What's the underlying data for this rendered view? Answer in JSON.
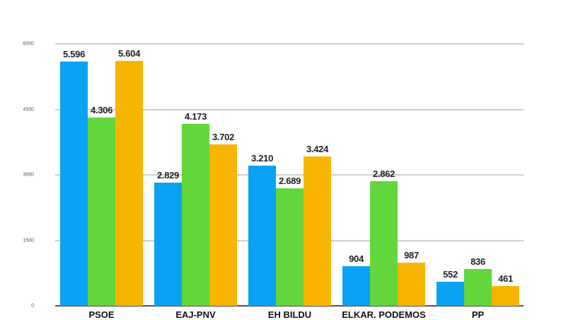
{
  "chart_data": {
    "type": "bar",
    "title": "",
    "xlabel": "",
    "ylabel": "",
    "ylim": [
      0,
      6000
    ],
    "yticks": [
      "0",
      "1500",
      "3000",
      "4500",
      "6000"
    ],
    "grid": true,
    "legend": null,
    "categories": [
      "PSOE",
      "EAJ-PNV",
      "EH BILDU",
      "ELKAR. PODEMOS",
      "PP"
    ],
    "series": [
      {
        "name": "series-1",
        "color": "#0aa2f5",
        "values": [
          5596,
          2829,
          3210,
          904,
          552
        ],
        "labels": [
          "5.596",
          "2.829",
          "3.210",
          "904",
          "552"
        ]
      },
      {
        "name": "series-2",
        "color": "#62d63b",
        "values": [
          4306,
          4173,
          2689,
          2862,
          836
        ],
        "labels": [
          "4.306",
          "4.173",
          "2.689",
          "2.862",
          "836"
        ]
      },
      {
        "name": "series-3",
        "color": "#f7b500",
        "values": [
          5604,
          3702,
          3424,
          987,
          461
        ],
        "labels": [
          "5.604",
          "3.702",
          "3.424",
          "987",
          "461"
        ]
      }
    ]
  }
}
